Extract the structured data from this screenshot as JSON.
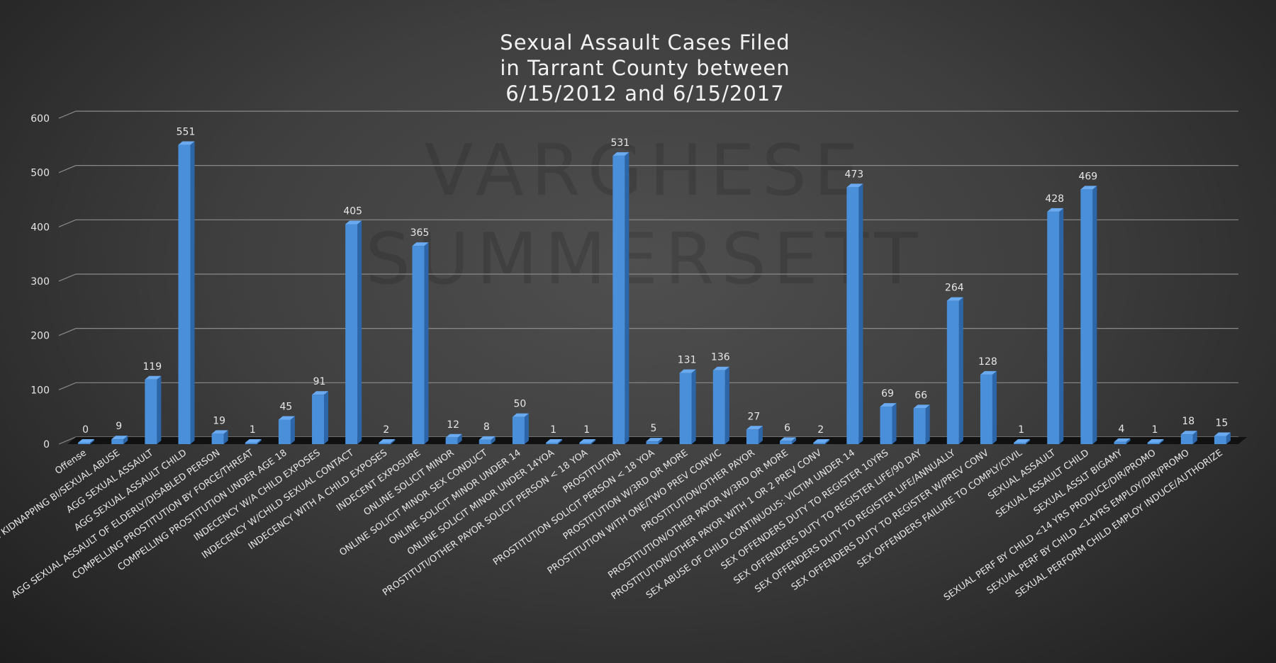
{
  "watermark": [
    "VARGHESE",
    "SUMMERSETT"
  ],
  "chart_data": {
    "type": "bar",
    "title": [
      "Sexual Assault Cases Filed",
      "in Tarrant County between",
      "6/15/2012 and 6/15/2017"
    ],
    "xlabel": "",
    "ylabel": "",
    "ylim": [
      0,
      600
    ],
    "yticks": [
      0,
      100,
      200,
      300,
      400,
      500,
      600
    ],
    "grid": true,
    "bar_color": "#4a8fd9",
    "categories": [
      "Offense",
      "AGG KIDNAPPING BI/SEXUAL ABUSE",
      "AGG SEXUAL ASSAULT",
      "AGG SEXUAL ASSAULT CHILD",
      "AGG SEXUAL ASSAULT OF ELDERLY/DISABLED PERSON",
      "COMPELLING PROSTITUTION BY FORCE/THREAT",
      "COMPELLING PROSTITUTION UNDER AGE 18",
      "INDECENCY W/A CHILD EXPOSES",
      "INDECENCY W/CHILD SEXUAL CONTACT",
      "INDECENCY WITH A CHILD EXPOSES",
      "INDECENT EXPOSURE",
      "ONLINE SOLICIT MINOR",
      "ONLINE SOLICIT MINOR SEX CONDUCT",
      "ONLINE SOLICIT MINOR UNDER 14",
      "ONLINE SOLICIT MINOR UNDER 14YOA",
      "PROSTITUTI/OTHER PAYOR SOLICIT PERSON < 18 YOA",
      "PROSTITUTION",
      "PROSTITUTION SOLICIT PERSON < 18 YOA",
      "PROSTITUTION W/3RD OR MORE",
      "PROSTITUTION WITH ONE/TWO PREV CONVIC",
      "PROSTITUTION/OTHER PAYOR",
      "PROSTITUTION/OTHER PAYOR W/3RD OR MORE",
      "PROSTITUTION/OTHER PAYOR WITH 1 OR 2 PREV CONV",
      "SEX ABUSE OF CHILD CONTINUOUS: VICTIM UNDER 14",
      "SEX OFFENDERS DUTY TO REGISTER 10YRS",
      "SEX OFFENDERS DUTY TO REGISTER LIFE/90 DAY",
      "SEX OFFENDERS DUTY TO REGISTER LIFE/ANNUALLY",
      "SEX OFFENDERS DUTY TO REGISTER W/PREV CONV",
      "SEX OFFENDERS FAILURE TO COMPLY/CIVIL",
      "SEXUAL ASSAULT",
      "SEXUAL ASSAULT CHILD",
      "SEXUAL ASSLT BIGAMY",
      "SEXUAL PERF BY CHILD <14 YRS PRODUCE/DIR/PROMO",
      "SEXUAL PERF BY CHILD <14YRS EMPLOY/DIR/PROMO",
      "SEXUAL PERFORM CHILD EMPLOY INDUCE/AUTHORIZE"
    ],
    "values": [
      0,
      9,
      119,
      551,
      19,
      1,
      45,
      91,
      405,
      2,
      365,
      12,
      8,
      50,
      1,
      1,
      531,
      5,
      131,
      136,
      27,
      6,
      2,
      473,
      69,
      66,
      264,
      128,
      1,
      428,
      469,
      4,
      1,
      18,
      15
    ],
    "data_labels": [
      "0",
      "9",
      "119",
      "551",
      "19",
      "1",
      "45",
      "91",
      "405",
      "2",
      "365",
      "12",
      "8",
      "50",
      "1",
      "1",
      "531",
      "5",
      "131",
      "136",
      "27",
      "6",
      "2",
      "473",
      "69",
      "66",
      "264",
      "128",
      "1",
      "428",
      "469",
      "4",
      "1",
      "18",
      "15"
    ]
  }
}
